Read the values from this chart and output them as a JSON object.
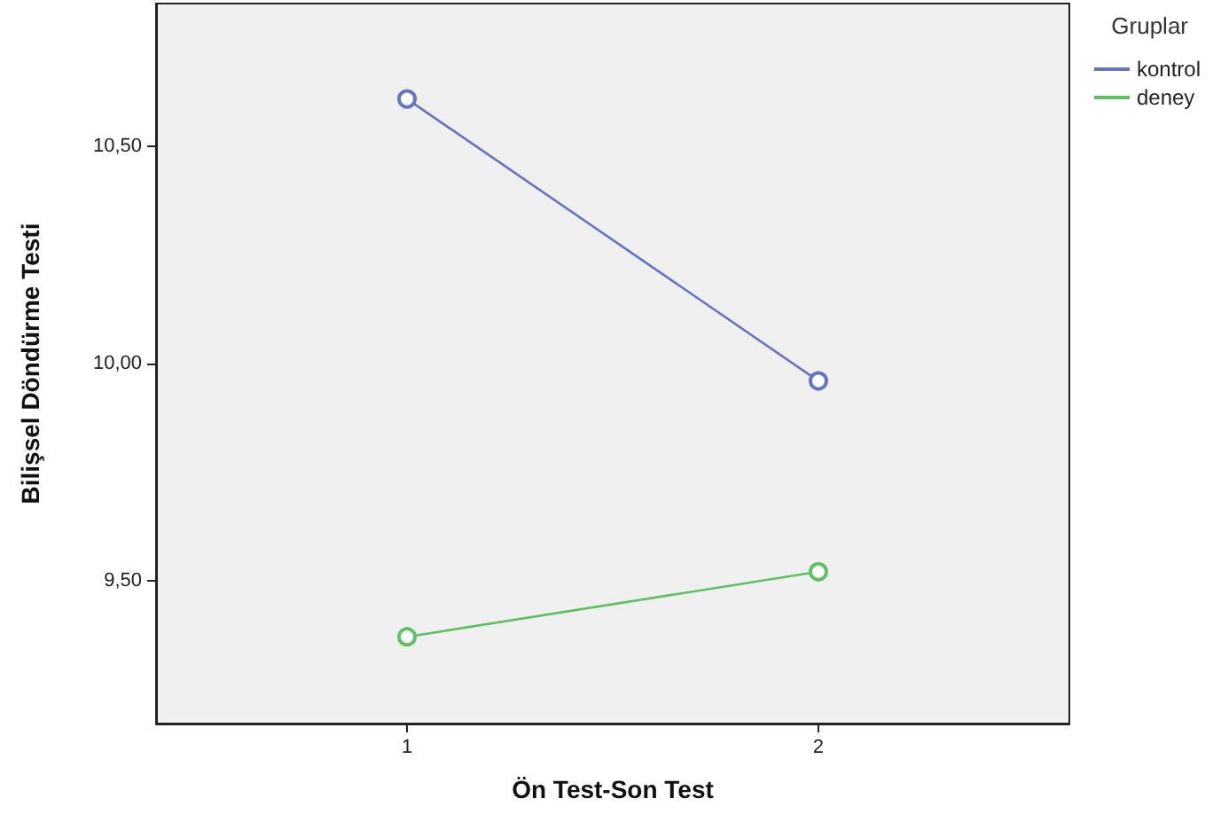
{
  "chart_data": {
    "type": "line",
    "xlabel": "Ön Test-Son Test",
    "ylabel": "Bilişsel Döndürme Testi",
    "legend_title": "Gruplar",
    "x": [
      1,
      2
    ],
    "series": [
      {
        "name": "kontrol",
        "color": "#6574c4",
        "values": [
          10.61,
          9.96
        ]
      },
      {
        "name": "deney",
        "color": "#5fc262",
        "values": [
          9.37,
          9.52
        ]
      }
    ],
    "xlim": [
      0.39,
      2.61
    ],
    "xticks": [
      1,
      2
    ],
    "ylim": [
      9.17,
      10.83
    ],
    "yticks": [
      {
        "value": 9.5,
        "label": "9,50"
      },
      {
        "value": 10,
        "label": "10,00"
      },
      {
        "value": 10.5,
        "label": "10,50"
      }
    ],
    "grid": false,
    "legend": "top right",
    "marker": "circle",
    "line_style": "solid"
  }
}
